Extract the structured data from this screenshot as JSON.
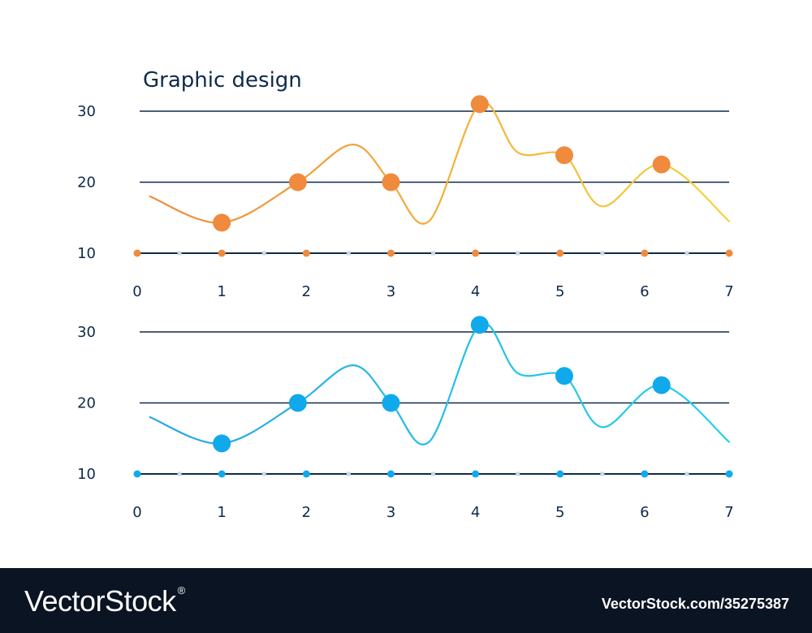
{
  "chart_data": [
    {
      "type": "line",
      "title": "Graphic  design",
      "color_start": "#f08a3c",
      "color_end": "#f5d33a",
      "marker_color": "#f08a3c",
      "xlim": [
        0,
        7
      ],
      "ylim": [
        10,
        30
      ],
      "x_ticks": [
        "0",
        "1",
        "2",
        "3",
        "4",
        "5",
        "6",
        "7"
      ],
      "y_ticks": [
        "10",
        "20",
        "30"
      ],
      "curve": [
        [
          0.15,
          18
        ],
        [
          1.0,
          14.3
        ],
        [
          1.9,
          20
        ],
        [
          2.55,
          25.3
        ],
        [
          3.0,
          20
        ],
        [
          3.45,
          14.5
        ],
        [
          4.05,
          31
        ],
        [
          4.5,
          24.2
        ],
        [
          5.05,
          23.8
        ],
        [
          5.5,
          16.6
        ],
        [
          6.2,
          22.5
        ],
        [
          7.0,
          14.5
        ]
      ],
      "markers": [
        [
          1.0,
          14.3
        ],
        [
          1.9,
          20
        ],
        [
          3.0,
          20
        ],
        [
          4.05,
          31
        ],
        [
          5.05,
          23.8
        ],
        [
          6.2,
          22.5
        ]
      ],
      "baseline_dots": [
        0,
        1,
        2,
        3,
        4,
        5,
        6,
        7
      ],
      "baseline_small_dots": [
        0.5,
        1.5,
        2.5,
        3.5,
        4.5,
        5.5,
        6.5
      ]
    },
    {
      "type": "line",
      "title": "",
      "color_start": "#29a6e8",
      "color_end": "#21d3e8",
      "marker_color": "#10a9ec",
      "xlim": [
        0,
        7
      ],
      "ylim": [
        10,
        30
      ],
      "x_ticks": [
        "0",
        "1",
        "2",
        "3",
        "4",
        "5",
        "6",
        "7"
      ],
      "y_ticks": [
        "10",
        "20",
        "30"
      ],
      "curve": [
        [
          0.15,
          18
        ],
        [
          1.0,
          14.3
        ],
        [
          1.9,
          20
        ],
        [
          2.55,
          25.3
        ],
        [
          3.0,
          20
        ],
        [
          3.45,
          14.5
        ],
        [
          4.05,
          31
        ],
        [
          4.5,
          24.2
        ],
        [
          5.05,
          23.8
        ],
        [
          5.5,
          16.6
        ],
        [
          6.2,
          22.5
        ],
        [
          7.0,
          14.5
        ]
      ],
      "markers": [
        [
          1.0,
          14.3
        ],
        [
          1.9,
          20
        ],
        [
          3.0,
          20
        ],
        [
          4.05,
          31
        ],
        [
          5.05,
          23.8
        ],
        [
          6.2,
          22.5
        ]
      ],
      "baseline_dots": [
        0,
        1,
        2,
        3,
        4,
        5,
        6,
        7
      ],
      "baseline_small_dots": [
        0.5,
        1.5,
        2.5,
        3.5,
        4.5,
        5.5,
        6.5
      ]
    }
  ],
  "footer": {
    "brand": "VectorStock",
    "registered": "®",
    "url": "VectorStock.com/35275387"
  },
  "colors": {
    "gridline": "#0e2a4a",
    "text": "#0e2a4a",
    "small_dot": "#cfd6de",
    "footer_bg": "#0b1423"
  }
}
